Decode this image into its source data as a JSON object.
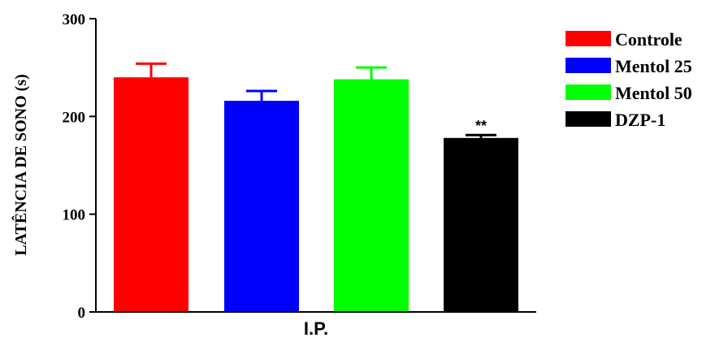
{
  "chart_data": {
    "type": "bar",
    "ylabel": "LATÊNCIA DE SONO (s)",
    "xlabel": "I.P.",
    "ylim": [
      0,
      300
    ],
    "yticks": [
      "0",
      "100",
      "200",
      "300"
    ],
    "grid": false,
    "legend_position": "right",
    "series": [
      {
        "name": "Controle",
        "value": 240,
        "error": 14,
        "color": "#ff0000",
        "annotation": ""
      },
      {
        "name": "Mentol 25",
        "value": 216,
        "error": 10,
        "color": "#0000ff",
        "annotation": ""
      },
      {
        "name": "Mentol 50",
        "value": 238,
        "error": 12,
        "color": "#00ff00",
        "annotation": ""
      },
      {
        "name": "DZP-1",
        "value": 178,
        "error": 3,
        "color": "#000000",
        "annotation": "**"
      }
    ]
  }
}
